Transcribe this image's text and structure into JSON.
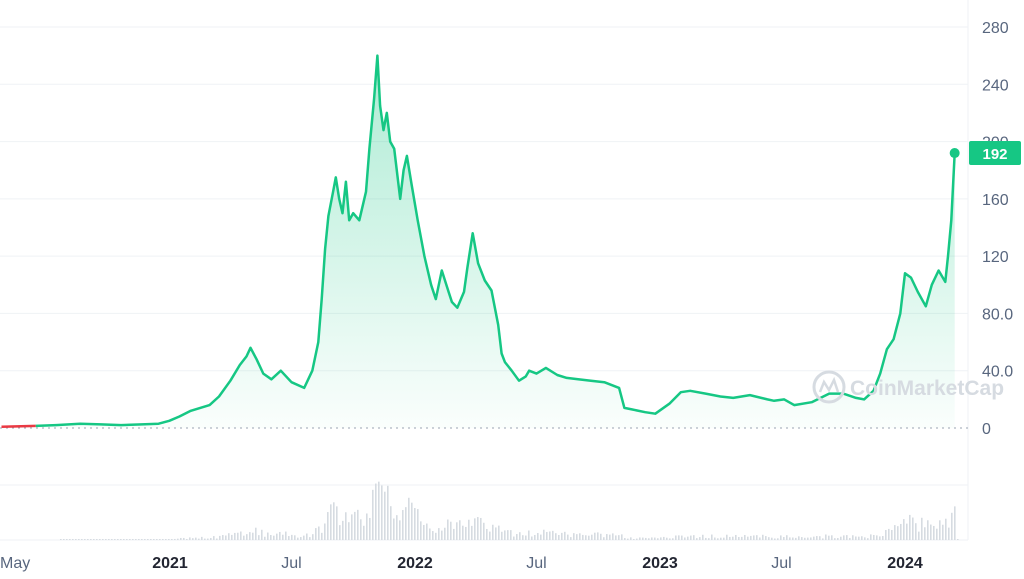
{
  "chart_data": {
    "type": "area",
    "title": "",
    "xlabel": "",
    "ylabel": "",
    "ylim": [
      0,
      280
    ],
    "y_ticks": [
      {
        "value": 0,
        "label": "0"
      },
      {
        "value": 40,
        "label": "40.0"
      },
      {
        "value": 80,
        "label": "80.0"
      },
      {
        "value": 120,
        "label": "120"
      },
      {
        "value": 160,
        "label": "160"
      },
      {
        "value": 200,
        "label": "200"
      },
      {
        "value": 240,
        "label": "240"
      },
      {
        "value": 280,
        "label": "280"
      }
    ],
    "x_ticks": [
      {
        "label": "May",
        "date": "2020-05-01",
        "major": false
      },
      {
        "label": "2021",
        "date": "2021-01-01",
        "major": true
      },
      {
        "label": "Jul",
        "date": "2021-07-01",
        "major": false
      },
      {
        "label": "2022",
        "date": "2022-01-01",
        "major": true
      },
      {
        "label": "Jul",
        "date": "2022-07-01",
        "major": false
      },
      {
        "label": "2023",
        "date": "2023-01-01",
        "major": true
      },
      {
        "label": "Jul",
        "date": "2023-07-01",
        "major": false
      },
      {
        "label": "2024",
        "date": "2024-01-01",
        "major": true
      }
    ],
    "series": [
      {
        "x": [
          "2020-04-25",
          "2020-06-15",
          "2020-07-15",
          "2020-08-20",
          "2020-09-20",
          "2020-10-20",
          "2020-11-20",
          "2020-12-15",
          "2020-12-31",
          "2021-01-15",
          "2021-02-01",
          "2021-02-15",
          "2021-03-01",
          "2021-03-15",
          "2021-04-01",
          "2021-04-15",
          "2021-04-25",
          "2021-05-01",
          "2021-05-10",
          "2021-05-20",
          "2021-06-01",
          "2021-06-15",
          "2021-07-01",
          "2021-07-20",
          "2021-08-01",
          "2021-08-10",
          "2021-08-15",
          "2021-08-20",
          "2021-08-25",
          "2021-09-01",
          "2021-09-05",
          "2021-09-10",
          "2021-09-15",
          "2021-09-20",
          "2021-09-25",
          "2021-10-01",
          "2021-10-10",
          "2021-10-20",
          "2021-10-25",
          "2021-11-01",
          "2021-11-06",
          "2021-11-10",
          "2021-11-15",
          "2021-11-20",
          "2021-11-25",
          "2021-12-01",
          "2021-12-10",
          "2021-12-15",
          "2021-12-20",
          "2021-12-27",
          "2022-01-05",
          "2022-01-15",
          "2022-01-25",
          "2022-02-01",
          "2022-02-10",
          "2022-02-20",
          "2022-02-25",
          "2022-03-05",
          "2022-03-15",
          "2022-03-20",
          "2022-03-28",
          "2022-04-05",
          "2022-04-15",
          "2022-04-25",
          "2022-05-05",
          "2022-05-10",
          "2022-05-15",
          "2022-05-25",
          "2022-06-05",
          "2022-06-15",
          "2022-06-20",
          "2022-07-01",
          "2022-07-15",
          "2022-08-01",
          "2022-08-15",
          "2022-09-01",
          "2022-09-20",
          "2022-10-10",
          "2022-11-01",
          "2022-11-09",
          "2022-11-20",
          "2022-12-10",
          "2022-12-25",
          "2023-01-15",
          "2023-02-01",
          "2023-02-15",
          "2023-03-10",
          "2023-04-01",
          "2023-04-20",
          "2023-05-15",
          "2023-06-10",
          "2023-06-20",
          "2023-07-05",
          "2023-07-20",
          "2023-08-15",
          "2023-09-10",
          "2023-10-01",
          "2023-10-20",
          "2023-11-01",
          "2023-11-15",
          "2023-11-25",
          "2023-12-05",
          "2023-12-15",
          "2023-12-25",
          "2024-01-01",
          "2024-01-10",
          "2024-01-20",
          "2024-02-01",
          "2024-02-10",
          "2024-02-20",
          "2024-03-01",
          "2024-03-05",
          "2024-03-10",
          "2024-03-15"
        ],
        "values": [
          0.9,
          1.5,
          2.0,
          3.0,
          2.5,
          2.0,
          2.5,
          3.0,
          5.0,
          8.0,
          12.0,
          14.0,
          16.0,
          22.0,
          33.0,
          44.0,
          50.0,
          56.0,
          48.0,
          38.0,
          34.0,
          40.0,
          32.0,
          28.0,
          40.0,
          60.0,
          90.0,
          125.0,
          148.0,
          165.0,
          175.0,
          160.0,
          150.0,
          172.0,
          145.0,
          150.0,
          145.0,
          165.0,
          195.0,
          230.0,
          260.0,
          225.0,
          208.0,
          220.0,
          200.0,
          195.0,
          160.0,
          180.0,
          190.0,
          170.0,
          145.0,
          120.0,
          100.0,
          90.0,
          110.0,
          95.0,
          88.0,
          84.0,
          95.0,
          112.0,
          136.0,
          115.0,
          103.0,
          96.0,
          72.0,
          52.0,
          46.0,
          40.0,
          33.0,
          36.0,
          40.0,
          38.0,
          42.0,
          37.0,
          35.0,
          34.0,
          33.0,
          32.0,
          28.0,
          14.0,
          13.0,
          11.0,
          10.0,
          17.0,
          25.0,
          26.0,
          24.0,
          22.0,
          21.0,
          23.0,
          20.0,
          19.0,
          20.0,
          16.0,
          18.0,
          24.0,
          24.0,
          21.0,
          20.0,
          26.0,
          38.0,
          55.0,
          62.0,
          80.0,
          108.0,
          105.0,
          95.0,
          85.0,
          100.0,
          110.0,
          102.0,
          120.0,
          145.0,
          192.0
        ]
      }
    ],
    "current_value": {
      "label": "192",
      "value": 192
    },
    "grid": true,
    "legend": "none",
    "colors": {
      "up": "#16c784",
      "early": "#ea3943",
      "grid": "#eff2f5",
      "badge": "#16c784",
      "volume": "#d6dbe1"
    },
    "watermark": "CoinMarketCap"
  }
}
